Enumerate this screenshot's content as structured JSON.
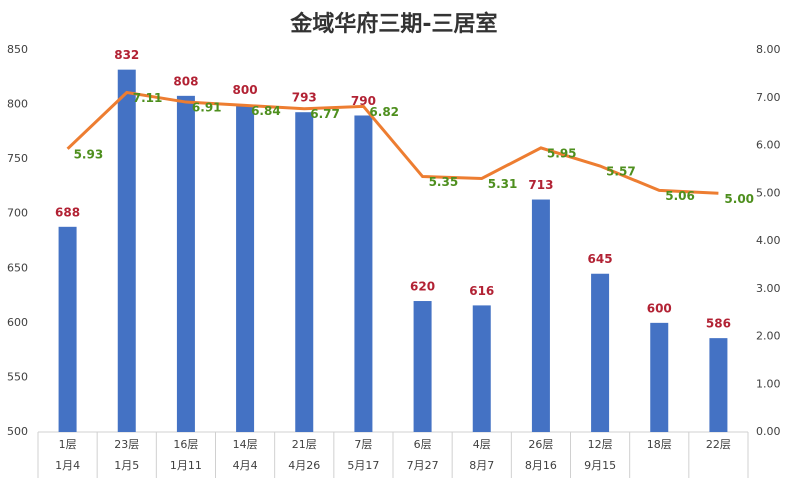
{
  "chart_data": {
    "type": "bar-line",
    "title": "金域华府三期-三居室",
    "categories": [
      [
        "1层",
        "1月4"
      ],
      [
        "23层",
        "1月5"
      ],
      [
        "16层",
        "1月11"
      ],
      [
        "14层",
        "4月4"
      ],
      [
        "21层",
        "4月26"
      ],
      [
        "7层",
        "5月17"
      ],
      [
        "6层",
        "7月27"
      ],
      [
        "4层",
        "8月7"
      ],
      [
        "26层",
        "8月16"
      ],
      [
        "12层",
        "9月15"
      ],
      [
        "18层",
        null
      ],
      [
        "22层",
        null
      ]
    ],
    "series": [
      {
        "type": "bar",
        "color": "#4472c4",
        "values": [
          688,
          832,
          808,
          800,
          793,
          790,
          620,
          616,
          713,
          645,
          600,
          586
        ]
      },
      {
        "type": "line",
        "axis": "y2",
        "color": "#ed7d31",
        "values": [
          5.93,
          7.11,
          6.91,
          6.84,
          6.77,
          6.82,
          5.35,
          5.31,
          5.95,
          5.57,
          5.06,
          5.0
        ],
        "value_labels": [
          "5.93",
          "7.11",
          "6.91",
          "6.84",
          "6.77",
          "6.82",
          "5.35",
          "5.31",
          "5.95",
          "5.57",
          "5.06",
          "5.00"
        ]
      }
    ],
    "ylim": [
      500,
      850
    ],
    "yticks": [
      500,
      550,
      600,
      650,
      700,
      750,
      800,
      850
    ],
    "y2lim": [
      0,
      8
    ],
    "y2ticks": [
      {
        "value": 0,
        "label": "0.00"
      },
      {
        "value": 1,
        "label": "1.00"
      },
      {
        "value": 2,
        "label": "2.00"
      },
      {
        "value": 3,
        "label": "3.00"
      },
      {
        "value": 4,
        "label": "4.00"
      },
      {
        "value": 5,
        "label": "5.00"
      },
      {
        "value": 6,
        "label": "6.00"
      },
      {
        "value": 7,
        "label": "7.00"
      },
      {
        "value": 8,
        "label": "8.00"
      }
    ]
  }
}
